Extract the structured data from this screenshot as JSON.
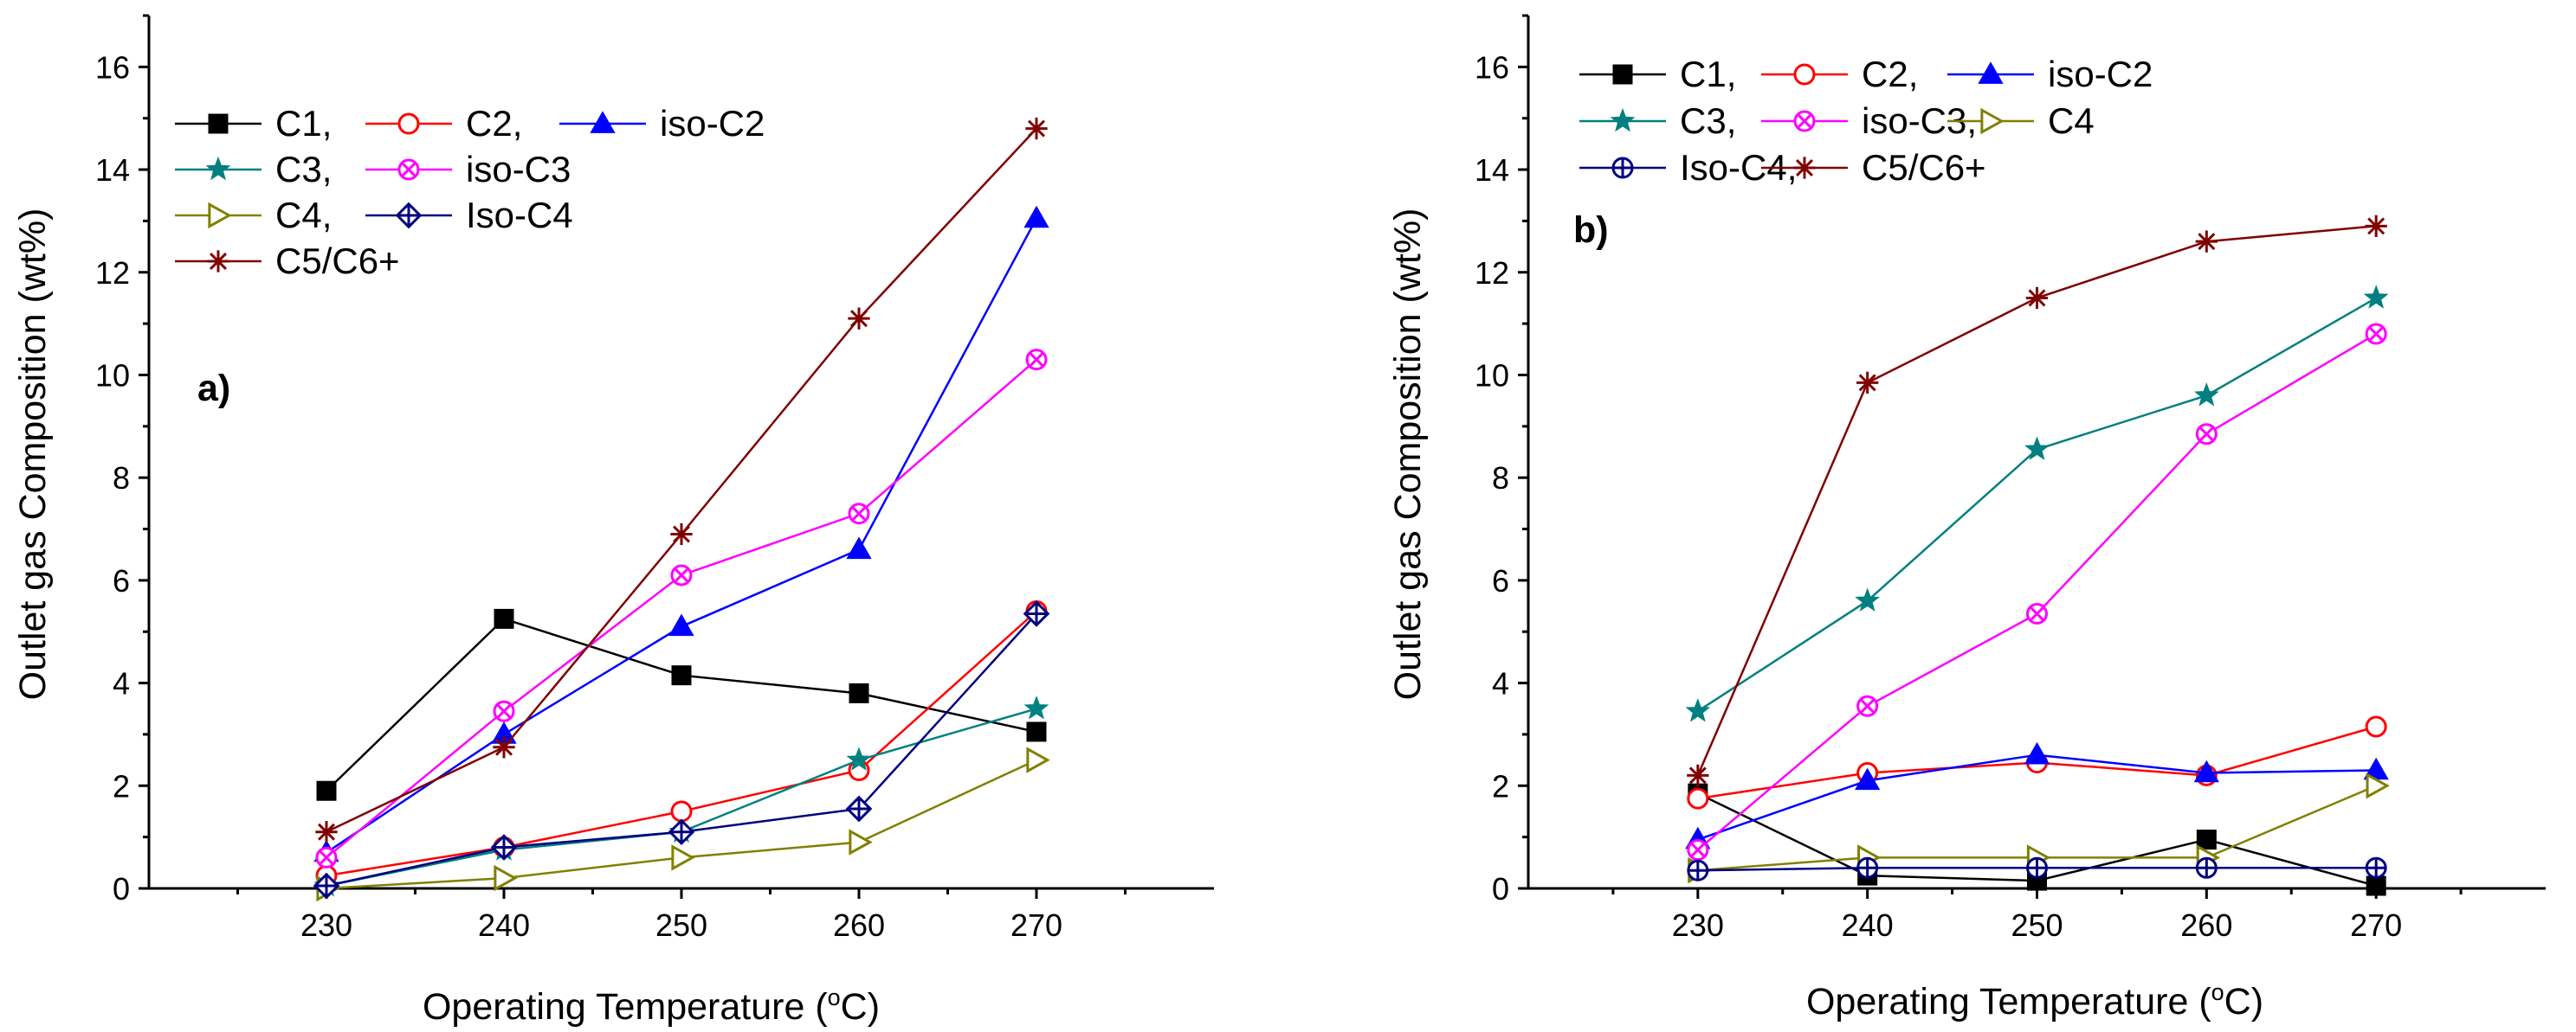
{
  "chart_data": [
    {
      "type": "line",
      "panel_label": "a)",
      "xlabel": "Operating Temperature",
      "xunit_pre": "(",
      "xunit_sup": "o",
      "xunit_post": "C)",
      "ylabel": "Outlet gas Composition (wt%)",
      "xlim": [
        220,
        280
      ],
      "ylim": [
        0,
        17
      ],
      "xticks": [
        230,
        240,
        250,
        260,
        270
      ],
      "yticks": [
        0,
        2,
        4,
        6,
        8,
        10,
        12,
        14,
        16
      ],
      "x": [
        230,
        240,
        250,
        260,
        270
      ],
      "legend_position": "top-left",
      "series": [
        {
          "name": "C1",
          "legend": "C1,",
          "color": "#000000",
          "marker": "square-filled",
          "values": [
            1.9,
            5.25,
            4.15,
            3.8,
            3.05
          ]
        },
        {
          "name": "C2",
          "legend": "C2,",
          "color": "#ff0000",
          "marker": "circle-open",
          "values": [
            0.25,
            0.8,
            1.5,
            2.3,
            5.4
          ]
        },
        {
          "name": "iso-C2",
          "legend": "iso-C2",
          "color": "#0000ff",
          "marker": "triangle-up-filled",
          "values": [
            0.7,
            3.0,
            5.1,
            6.6,
            13.05
          ]
        },
        {
          "name": "C3",
          "legend": "C3,",
          "color": "#008080",
          "marker": "star-filled",
          "values": [
            0.05,
            0.75,
            1.1,
            2.5,
            3.5
          ]
        },
        {
          "name": "iso-C3",
          "legend": "iso-C3",
          "color": "#ff00ff",
          "marker": "circle-x",
          "values": [
            0.6,
            3.45,
            6.1,
            7.3,
            10.3
          ]
        },
        {
          "name": "C4",
          "legend": "C4,",
          "color": "#808000",
          "marker": "triangle-right-open",
          "values": [
            0.0,
            0.2,
            0.6,
            0.9,
            2.5
          ]
        },
        {
          "name": "Iso-C4",
          "legend": "Iso-C4",
          "color": "#000080",
          "marker": "diamond-plus",
          "values": [
            0.05,
            0.8,
            1.1,
            1.55,
            5.35
          ]
        },
        {
          "name": "C5/C6+",
          "legend": "C5/C6+",
          "color": "#800000",
          "marker": "asterisk",
          "values": [
            1.1,
            2.75,
            6.9,
            11.1,
            14.8
          ]
        }
      ]
    },
    {
      "type": "line",
      "panel_label": "b)",
      "xlabel": "Operating Temperature",
      "xunit_pre": "(",
      "xunit_sup": "o",
      "xunit_post": "C)",
      "ylabel": "Outlet gas Composition (wt%)",
      "xlim": [
        220,
        280
      ],
      "ylim": [
        0,
        17
      ],
      "xticks": [
        230,
        240,
        250,
        260,
        270
      ],
      "yticks": [
        0,
        2,
        4,
        6,
        8,
        10,
        12,
        14,
        16
      ],
      "x": [
        230,
        240,
        250,
        260,
        270
      ],
      "legend_position": "top-left",
      "series": [
        {
          "name": "C1",
          "legend": "C1,",
          "color": "#000000",
          "marker": "square-filled",
          "values": [
            1.85,
            0.25,
            0.15,
            0.95,
            0.05
          ]
        },
        {
          "name": "C2",
          "legend": "C2,",
          "color": "#ff0000",
          "marker": "circle-open",
          "values": [
            1.75,
            2.25,
            2.45,
            2.2,
            3.15
          ]
        },
        {
          "name": "iso-C2",
          "legend": "iso-C2",
          "color": "#0000ff",
          "marker": "triangle-up-filled",
          "values": [
            0.95,
            2.1,
            2.6,
            2.25,
            2.3
          ]
        },
        {
          "name": "C3",
          "legend": "C3,",
          "color": "#008080",
          "marker": "star-filled",
          "values": [
            3.45,
            5.6,
            8.55,
            9.6,
            11.5
          ]
        },
        {
          "name": "iso-C3",
          "legend": "iso-C3,",
          "color": "#ff00ff",
          "marker": "circle-x",
          "values": [
            0.75,
            3.55,
            5.35,
            8.85,
            10.8
          ]
        },
        {
          "name": "C4",
          "legend": "C4",
          "color": "#808000",
          "marker": "triangle-right-open",
          "values": [
            0.35,
            0.6,
            0.6,
            0.6,
            2.0
          ]
        },
        {
          "name": "Iso-C4",
          "legend": "Iso-C4,",
          "color": "#000080",
          "marker": "circle-plus",
          "values": [
            0.35,
            0.4,
            0.4,
            0.4,
            0.4
          ]
        },
        {
          "name": "C5/C6+",
          "legend": "C5/C6+",
          "color": "#800000",
          "marker": "asterisk",
          "values": [
            2.2,
            9.85,
            11.5,
            12.6,
            12.9
          ]
        }
      ]
    }
  ]
}
